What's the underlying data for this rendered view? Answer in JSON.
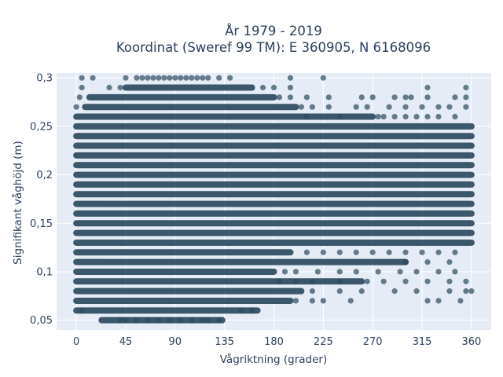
{
  "chart_data": {
    "type": "scatter",
    "title": "År 1979 - 2019",
    "subtitle": "Koordinat (Sweref 99 TM): E 360905, N 6168096",
    "xlabel": "Vågriktning (grader)",
    "ylabel": "Signifikant våghöjd (m)",
    "xlim": [
      -18,
      378
    ],
    "ylim": [
      0.04,
      0.305
    ],
    "x_ticks": [
      0,
      45,
      90,
      135,
      180,
      225,
      270,
      315,
      360
    ],
    "x_tick_labels": [
      "0",
      "45",
      "90",
      "135",
      "180",
      "225",
      "270",
      "315",
      "360"
    ],
    "y_ticks": [
      0.05,
      0.1,
      0.15,
      0.2,
      0.25,
      0.3
    ],
    "y_tick_labels": [
      "0,05",
      "0,1",
      "0,15",
      "0,2",
      "0,25",
      "0,3"
    ],
    "grid": true,
    "marker_color": "#2c4a5e",
    "background_color": "#e5ecf6",
    "series": [
      {
        "note": "Dense horizontal bands: at each wave height (0.01 m steps) observations span these direction ranges in degrees",
        "bands": [
          {
            "y": 0.05,
            "x_from": 23,
            "x_to": 133
          },
          {
            "y": 0.06,
            "x_from": 0,
            "x_to": 165
          },
          {
            "y": 0.07,
            "x_from": 0,
            "x_to": 195
          },
          {
            "y": 0.08,
            "x_from": 0,
            "x_to": 205
          },
          {
            "y": 0.09,
            "x_from": 0,
            "x_to": 260
          },
          {
            "y": 0.1,
            "x_from": 0,
            "x_to": 180
          },
          {
            "y": 0.11,
            "x_from": 0,
            "x_to": 300
          },
          {
            "y": 0.12,
            "x_from": 0,
            "x_to": 195
          },
          {
            "y": 0.13,
            "x_from": 0,
            "x_to": 360
          },
          {
            "y": 0.14,
            "x_from": 0,
            "x_to": 360
          },
          {
            "y": 0.15,
            "x_from": 0,
            "x_to": 360
          },
          {
            "y": 0.16,
            "x_from": 0,
            "x_to": 360
          },
          {
            "y": 0.17,
            "x_from": 0,
            "x_to": 360
          },
          {
            "y": 0.18,
            "x_from": 0,
            "x_to": 360
          },
          {
            "y": 0.19,
            "x_from": 0,
            "x_to": 360
          },
          {
            "y": 0.2,
            "x_from": 0,
            "x_to": 360
          },
          {
            "y": 0.21,
            "x_from": 0,
            "x_to": 360
          },
          {
            "y": 0.22,
            "x_from": 0,
            "x_to": 360
          },
          {
            "y": 0.23,
            "x_from": 0,
            "x_to": 360
          },
          {
            "y": 0.24,
            "x_from": 0,
            "x_to": 360
          },
          {
            "y": 0.25,
            "x_from": 0,
            "x_to": 360
          },
          {
            "y": 0.26,
            "x_from": 0,
            "x_to": 270
          },
          {
            "y": 0.27,
            "x_from": 8,
            "x_to": 200
          },
          {
            "y": 0.28,
            "x_from": 12,
            "x_to": 180
          },
          {
            "y": 0.29,
            "x_from": 45,
            "x_to": 160
          }
        ],
        "scatter_points": [
          [
            5,
            0.06
          ],
          [
            150,
            0.06
          ],
          [
            160,
            0.06
          ],
          [
            40,
            0.05
          ],
          [
            45,
            0.05
          ],
          [
            55,
            0.05
          ],
          [
            65,
            0.05
          ],
          [
            75,
            0.05
          ],
          [
            85,
            0.05
          ],
          [
            95,
            0.05
          ],
          [
            105,
            0.05
          ],
          [
            115,
            0.05
          ],
          [
            120,
            0.05
          ],
          [
            130,
            0.05
          ],
          [
            200,
            0.07
          ],
          [
            215,
            0.07
          ],
          [
            225,
            0.07
          ],
          [
            250,
            0.07
          ],
          [
            320,
            0.07
          ],
          [
            330,
            0.07
          ],
          [
            350,
            0.07
          ],
          [
            215,
            0.08
          ],
          [
            240,
            0.08
          ],
          [
            260,
            0.08
          ],
          [
            290,
            0.08
          ],
          [
            310,
            0.08
          ],
          [
            340,
            0.08
          ],
          [
            355,
            0.08
          ],
          [
            360,
            0.08
          ],
          [
            185,
            0.09
          ],
          [
            200,
            0.09
          ],
          [
            215,
            0.09
          ],
          [
            240,
            0.09
          ],
          [
            265,
            0.09
          ],
          [
            280,
            0.09
          ],
          [
            300,
            0.09
          ],
          [
            320,
            0.09
          ],
          [
            340,
            0.09
          ],
          [
            355,
            0.09
          ],
          [
            190,
            0.1
          ],
          [
            200,
            0.1
          ],
          [
            220,
            0.1
          ],
          [
            240,
            0.1
          ],
          [
            255,
            0.1
          ],
          [
            275,
            0.1
          ],
          [
            295,
            0.1
          ],
          [
            310,
            0.1
          ],
          [
            330,
            0.1
          ],
          [
            345,
            0.1
          ],
          [
            300,
            0.11
          ],
          [
            320,
            0.11
          ],
          [
            340,
            0.11
          ],
          [
            210,
            0.12
          ],
          [
            225,
            0.12
          ],
          [
            240,
            0.12
          ],
          [
            255,
            0.12
          ],
          [
            270,
            0.12
          ],
          [
            285,
            0.12
          ],
          [
            300,
            0.12
          ],
          [
            315,
            0.12
          ],
          [
            330,
            0.12
          ],
          [
            345,
            0.12
          ],
          [
            210,
            0.26
          ],
          [
            240,
            0.26
          ],
          [
            275,
            0.26
          ],
          [
            280,
            0.26
          ],
          [
            290,
            0.26
          ],
          [
            300,
            0.26
          ],
          [
            310,
            0.26
          ],
          [
            320,
            0.26
          ],
          [
            330,
            0.26
          ],
          [
            345,
            0.26
          ],
          [
            205,
            0.27
          ],
          [
            215,
            0.27
          ],
          [
            230,
            0.27
          ],
          [
            255,
            0.27
          ],
          [
            265,
            0.27
          ],
          [
            285,
            0.27
          ],
          [
            300,
            0.27
          ],
          [
            315,
            0.27
          ],
          [
            330,
            0.27
          ],
          [
            340,
            0.27
          ],
          [
            355,
            0.27
          ],
          [
            0,
            0.27
          ],
          [
            185,
            0.28
          ],
          [
            195,
            0.28
          ],
          [
            210,
            0.28
          ],
          [
            230,
            0.28
          ],
          [
            260,
            0.28
          ],
          [
            270,
            0.28
          ],
          [
            290,
            0.28
          ],
          [
            300,
            0.28
          ],
          [
            305,
            0.28
          ],
          [
            320,
            0.28
          ],
          [
            345,
            0.28
          ],
          [
            355,
            0.28
          ],
          [
            3,
            0.28
          ],
          [
            5,
            0.29
          ],
          [
            30,
            0.29
          ],
          [
            40,
            0.29
          ],
          [
            170,
            0.29
          ],
          [
            180,
            0.29
          ],
          [
            195,
            0.29
          ],
          [
            320,
            0.29
          ],
          [
            355,
            0.29
          ],
          [
            5,
            0.3
          ],
          [
            15,
            0.3
          ],
          [
            45,
            0.3
          ],
          [
            55,
            0.3
          ],
          [
            60,
            0.3
          ],
          [
            65,
            0.3
          ],
          [
            70,
            0.3
          ],
          [
            75,
            0.3
          ],
          [
            80,
            0.3
          ],
          [
            85,
            0.3
          ],
          [
            90,
            0.3
          ],
          [
            95,
            0.3
          ],
          [
            100,
            0.3
          ],
          [
            105,
            0.3
          ],
          [
            110,
            0.3
          ],
          [
            115,
            0.3
          ],
          [
            120,
            0.3
          ],
          [
            130,
            0.3
          ],
          [
            140,
            0.3
          ],
          [
            195,
            0.3
          ],
          [
            225,
            0.3
          ]
        ]
      }
    ]
  }
}
